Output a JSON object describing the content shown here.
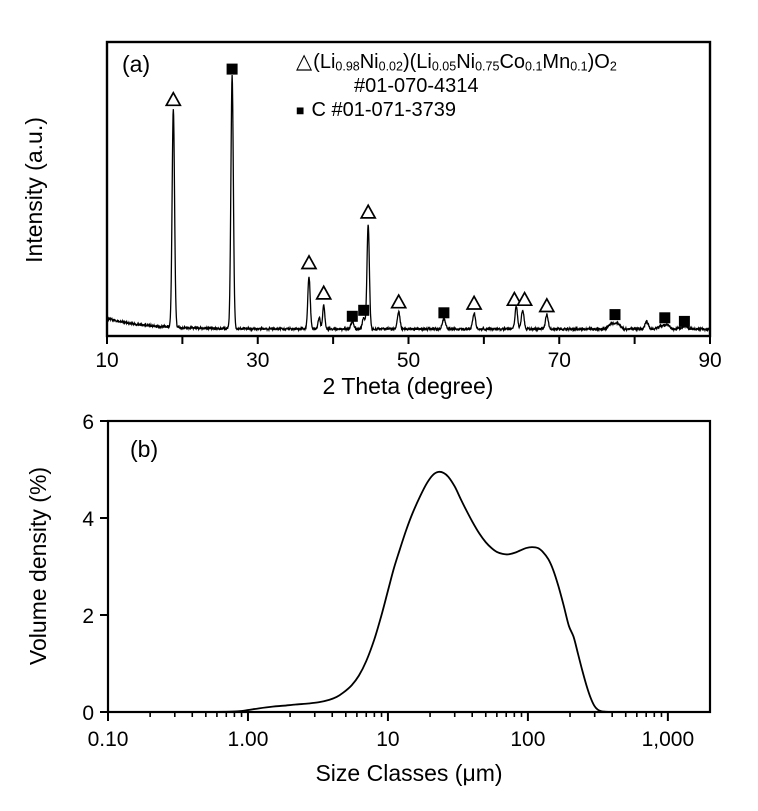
{
  "figure": {
    "background": "#ffffff",
    "line_color": "#000000"
  },
  "chart_data": [
    {
      "type": "line",
      "panel_label": "(a)",
      "xlabel": "2 Theta (degree)",
      "ylabel": "Intensity (a.u.)",
      "xlim": [
        10,
        90
      ],
      "x_ticks": [
        10,
        20,
        30,
        40,
        50,
        60,
        70,
        80,
        90
      ],
      "x_tick_labels": [
        "10",
        "",
        "30",
        "",
        "50",
        "",
        "70",
        "",
        "90"
      ],
      "y_axis_note": "arbitrary units, no tick marks",
      "grid": false,
      "legend": {
        "position": "inside-top-right",
        "entries": [
          {
            "marker": "open-triangle",
            "formula_segments": [
              [
                "t",
                "(Li"
              ],
              [
                "s",
                "0.98"
              ],
              [
                "t",
                "Ni"
              ],
              [
                "s",
                "0.02"
              ],
              [
                "t",
                ")(Li"
              ],
              [
                "s",
                "0.05"
              ],
              [
                "t",
                "Ni"
              ],
              [
                "s",
                "0.75"
              ],
              [
                "t",
                "Co"
              ],
              [
                "s",
                "0.1"
              ],
              [
                "t",
                "Mn"
              ],
              [
                "s",
                "0.1"
              ],
              [
                "t",
                ")O"
              ],
              [
                "s",
                "2"
              ]
            ],
            "registry_number": "#01-070-4314"
          },
          {
            "marker": "filled-square",
            "label": "C #01-071-3739"
          }
        ]
      },
      "baseline": {
        "flat": 0.008,
        "decay_amp": 0.042,
        "decay_scale": 5.0,
        "noise_amp": 0.0045
      },
      "peaks": [
        {
          "two_theta": 18.8,
          "intensity": 0.865,
          "sigma": 0.16,
          "marker": "triangle",
          "marker_y": 0.915
        },
        {
          "two_theta": 26.6,
          "intensity": 1.0,
          "sigma": 0.16,
          "marker": "square",
          "marker_y": 1.035
        },
        {
          "two_theta": 36.8,
          "intensity": 0.205,
          "sigma": 0.16,
          "marker": "triangle",
          "marker_y": 0.27
        },
        {
          "two_theta": 38.15,
          "intensity": 0.045,
          "sigma": 0.14,
          "marker": "none"
        },
        {
          "two_theta": 38.75,
          "intensity": 0.095,
          "sigma": 0.14,
          "marker": "triangle",
          "marker_y": 0.15
        },
        {
          "two_theta": 42.55,
          "intensity": 0.03,
          "sigma": 0.18,
          "marker": "square",
          "marker_y": 0.058
        },
        {
          "two_theta": 44.05,
          "intensity": 0.045,
          "sigma": 0.16,
          "marker": "square",
          "marker_y": 0.082
        },
        {
          "two_theta": 44.65,
          "intensity": 0.41,
          "sigma": 0.16,
          "marker": "triangle",
          "marker_y": 0.47
        },
        {
          "two_theta": 48.7,
          "intensity": 0.068,
          "sigma": 0.17,
          "marker": "triangle",
          "marker_y": 0.115
        },
        {
          "two_theta": 54.7,
          "intensity": 0.042,
          "sigma": 0.2,
          "marker": "square",
          "marker_y": 0.072
        },
        {
          "two_theta": 58.7,
          "intensity": 0.062,
          "sigma": 0.18,
          "marker": "triangle",
          "marker_y": 0.11
        },
        {
          "two_theta": 64.3,
          "intensity": 0.088,
          "sigma": 0.17,
          "marker": "triangle",
          "marker_y": 0.125,
          "marker_x": 64.05
        },
        {
          "two_theta": 65.15,
          "intensity": 0.075,
          "sigma": 0.17,
          "marker": "triangle",
          "marker_y": 0.125,
          "marker_x": 65.4
        },
        {
          "two_theta": 68.35,
          "intensity": 0.058,
          "sigma": 0.18,
          "marker": "triangle",
          "marker_y": 0.1
        },
        {
          "two_theta": 76.9,
          "intensity": 0.018,
          "sigma": 0.35,
          "marker": "none"
        },
        {
          "two_theta": 77.7,
          "intensity": 0.022,
          "sigma": 0.35,
          "marker": "square",
          "marker_y": 0.065,
          "marker_x": 77.4
        },
        {
          "two_theta": 81.6,
          "intensity": 0.03,
          "sigma": 0.22,
          "marker": "none"
        },
        {
          "two_theta": 83.5,
          "intensity": 0.012,
          "sigma": 0.4,
          "marker": "none"
        },
        {
          "two_theta": 84.3,
          "intensity": 0.016,
          "sigma": 0.3,
          "marker": "square",
          "marker_y": 0.052,
          "marker_x": 84.0
        },
        {
          "two_theta": 86.6,
          "intensity": 0.01,
          "sigma": 0.4,
          "marker": "square",
          "marker_y": 0.038
        }
      ]
    },
    {
      "type": "line",
      "panel_label": "(b)",
      "xlabel": "Size Classes (μm)",
      "ylabel": "Volume density (%)",
      "xscale": "log",
      "xlim": [
        0.1,
        2000
      ],
      "x_ticks": [
        0.1,
        1,
        10,
        100,
        1000
      ],
      "x_tick_labels": [
        "0.10",
        "1.00",
        "10",
        "100",
        "1,000"
      ],
      "ylim": [
        0,
        6
      ],
      "y_ticks": [
        0,
        2,
        4,
        6
      ],
      "grid": false,
      "points": [
        [
          0.5,
          0
        ],
        [
          0.7,
          0.005
        ],
        [
          0.85,
          0.015
        ],
        [
          1.0,
          0.04
        ],
        [
          1.2,
          0.075
        ],
        [
          1.5,
          0.11
        ],
        [
          1.8,
          0.13
        ],
        [
          2.2,
          0.155
        ],
        [
          2.7,
          0.175
        ],
        [
          3.2,
          0.2
        ],
        [
          3.8,
          0.25
        ],
        [
          4.3,
          0.31
        ],
        [
          4.8,
          0.4
        ],
        [
          5.5,
          0.55
        ],
        [
          6.2,
          0.75
        ],
        [
          7,
          1.05
        ],
        [
          8,
          1.5
        ],
        [
          9,
          2.0
        ],
        [
          10,
          2.5
        ],
        [
          11,
          2.95
        ],
        [
          12,
          3.3
        ],
        [
          13.5,
          3.75
        ],
        [
          15,
          4.1
        ],
        [
          17,
          4.45
        ],
        [
          19,
          4.72
        ],
        [
          21,
          4.89
        ],
        [
          23,
          4.95
        ],
        [
          25,
          4.93
        ],
        [
          27,
          4.85
        ],
        [
          30,
          4.65
        ],
        [
          33,
          4.4
        ],
        [
          36,
          4.18
        ],
        [
          40,
          3.93
        ],
        [
          45,
          3.68
        ],
        [
          50,
          3.5
        ],
        [
          55,
          3.38
        ],
        [
          60,
          3.3
        ],
        [
          66,
          3.26
        ],
        [
          72,
          3.25
        ],
        [
          80,
          3.28
        ],
        [
          88,
          3.33
        ],
        [
          97,
          3.38
        ],
        [
          107,
          3.4
        ],
        [
          118,
          3.38
        ],
        [
          128,
          3.3
        ],
        [
          140,
          3.15
        ],
        [
          152,
          2.92
        ],
        [
          165,
          2.6
        ],
        [
          180,
          2.2
        ],
        [
          196,
          1.78
        ],
        [
          212,
          1.55
        ],
        [
          228,
          1.2
        ],
        [
          245,
          0.85
        ],
        [
          262,
          0.55
        ],
        [
          280,
          0.3
        ],
        [
          298,
          0.13
        ],
        [
          315,
          0.05
        ],
        [
          335,
          0.015
        ],
        [
          360,
          0.005
        ],
        [
          400,
          0.001
        ],
        [
          500,
          0
        ],
        [
          1000,
          0
        ],
        [
          1950,
          0
        ]
      ]
    }
  ]
}
